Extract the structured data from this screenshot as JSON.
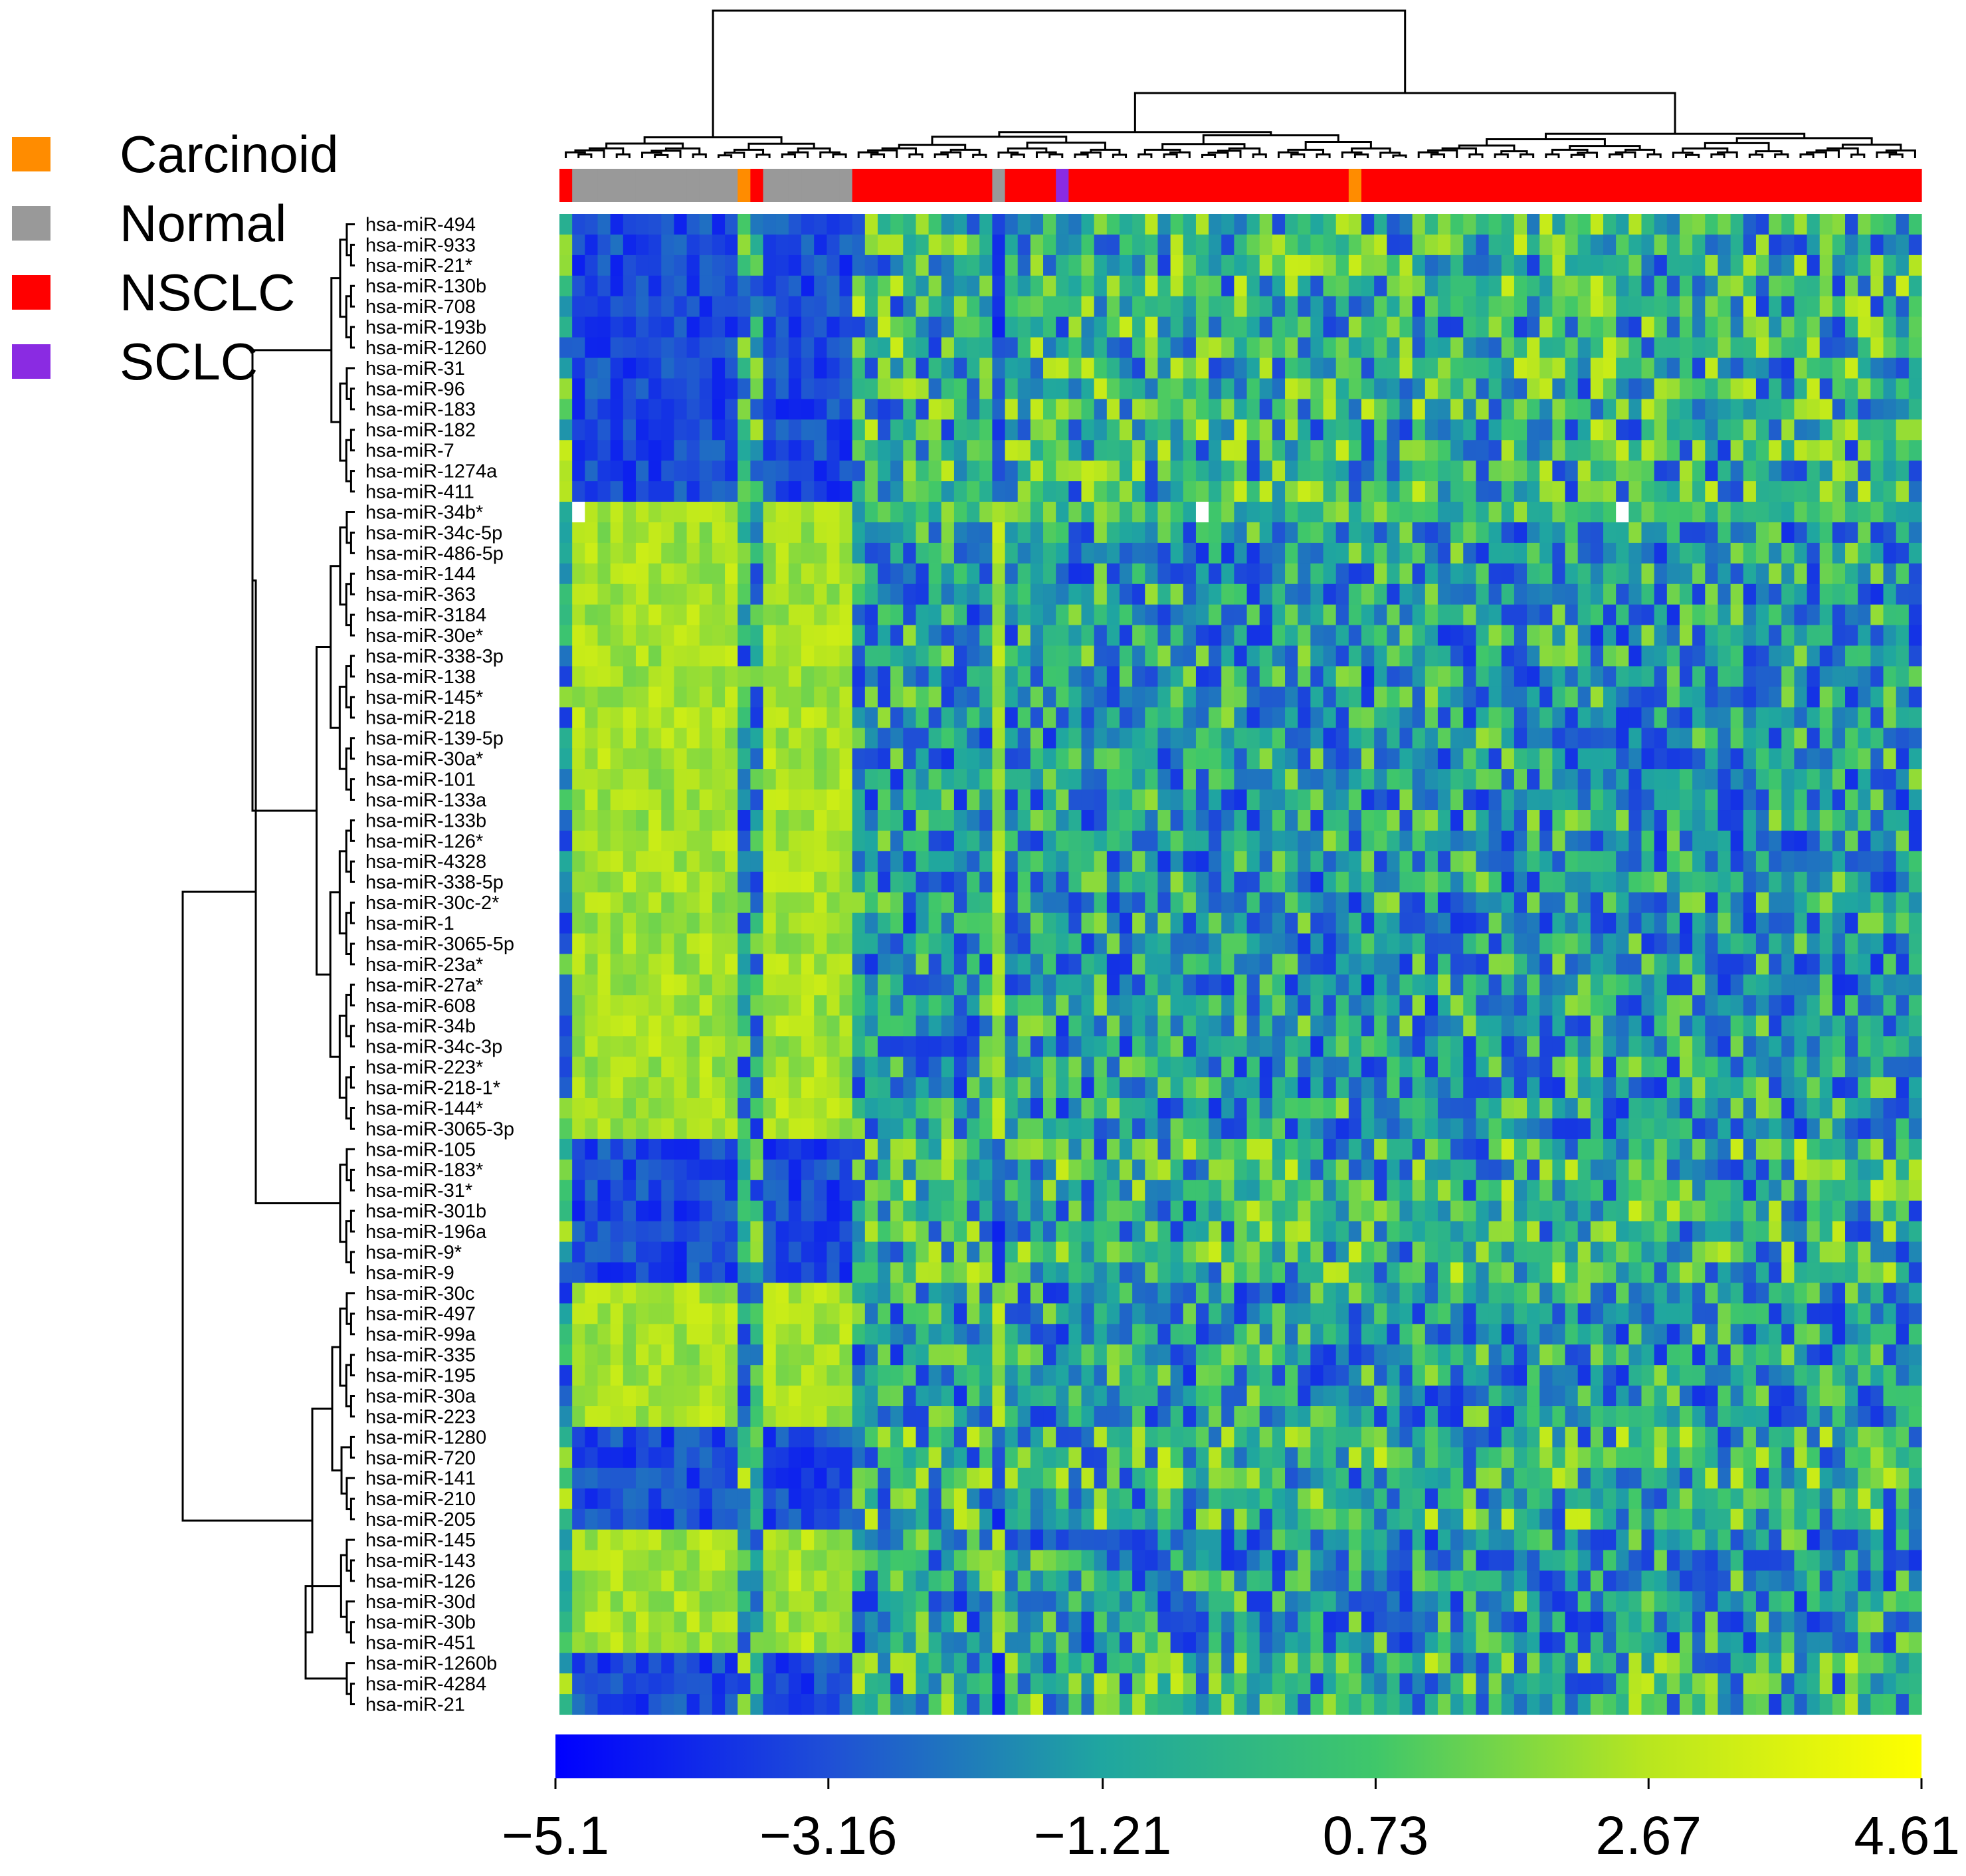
{
  "chart_data": {
    "type": "heatmap",
    "title": "",
    "legend": {
      "placement": "top-left",
      "items": [
        {
          "label": "Carcinoid",
          "color": "#ff8c00"
        },
        {
          "label": "Normal",
          "color": "#999999"
        },
        {
          "label": "NSCLC",
          "color": "#ff0000"
        },
        {
          "label": "SCLC",
          "color": "#8a2be2"
        }
      ]
    },
    "rows": [
      "hsa-miR-494",
      "hsa-miR-933",
      "hsa-miR-21*",
      "hsa-miR-130b",
      "hsa-miR-708",
      "hsa-miR-193b",
      "hsa-miR-1260",
      "hsa-miR-31",
      "hsa-miR-96",
      "hsa-miR-183",
      "hsa-miR-182",
      "hsa-miR-7",
      "hsa-miR-1274a",
      "hsa-miR-411",
      "hsa-miR-34b*",
      "hsa-miR-34c-5p",
      "hsa-miR-486-5p",
      "hsa-miR-144",
      "hsa-miR-363",
      "hsa-miR-3184",
      "hsa-miR-30e*",
      "hsa-miR-338-3p",
      "hsa-miR-138",
      "hsa-miR-145*",
      "hsa-miR-218",
      "hsa-miR-139-5p",
      "hsa-miR-30a*",
      "hsa-miR-101",
      "hsa-miR-133a",
      "hsa-miR-133b",
      "hsa-miR-126*",
      "hsa-miR-4328",
      "hsa-miR-338-5p",
      "hsa-miR-30c-2*",
      "hsa-miR-1",
      "hsa-miR-3065-5p",
      "hsa-miR-23a*",
      "hsa-miR-27a*",
      "hsa-miR-608",
      "hsa-miR-34b",
      "hsa-miR-34c-3p",
      "hsa-miR-223*",
      "hsa-miR-218-1*",
      "hsa-miR-144*",
      "hsa-miR-3065-3p",
      "hsa-miR-105",
      "hsa-miR-183*",
      "hsa-miR-31*",
      "hsa-miR-301b",
      "hsa-miR-196a",
      "hsa-miR-9*",
      "hsa-miR-9",
      "hsa-miR-30c",
      "hsa-miR-497",
      "hsa-miR-99a",
      "hsa-miR-335",
      "hsa-miR-195",
      "hsa-miR-30a",
      "hsa-miR-223",
      "hsa-miR-1280",
      "hsa-miR-720",
      "hsa-miR-141",
      "hsa-miR-210",
      "hsa-miR-205",
      "hsa-miR-145",
      "hsa-miR-143",
      "hsa-miR-126",
      "hsa-miR-30d",
      "hsa-miR-30b",
      "hsa-miR-451",
      "hsa-miR-1260b",
      "hsa-miR-4284",
      "hsa-miR-21"
    ],
    "row_block_pattern": [
      "b",
      "b",
      "b",
      "b",
      "b",
      "b",
      "b",
      "b",
      "b",
      "b",
      "b",
      "b",
      "b",
      "b",
      "w",
      "y",
      "y",
      "y",
      "y",
      "y",
      "y",
      "y",
      "y",
      "y",
      "y",
      "y",
      "y",
      "y",
      "y",
      "y",
      "y",
      "y",
      "y",
      "y",
      "y",
      "y",
      "y",
      "y",
      "y",
      "y",
      "y",
      "y",
      "y",
      "y",
      "y",
      "b",
      "b",
      "b",
      "b",
      "b",
      "b",
      "b",
      "y",
      "y",
      "y",
      "y",
      "y",
      "y",
      "y",
      "b",
      "b",
      "b",
      "b",
      "b",
      "y",
      "y",
      "y",
      "y",
      "y",
      "y",
      "b",
      "b",
      "b"
    ],
    "column_groups": [
      {
        "label": "NSCLC",
        "count": 1
      },
      {
        "label": "Normal",
        "count": 13
      },
      {
        "label": "Carcinoid",
        "count": 1
      },
      {
        "label": "NSCLC",
        "count": 1
      },
      {
        "label": "Normal",
        "count": 7
      },
      {
        "label": "NSCLC",
        "count": 11
      },
      {
        "label": "Normal",
        "count": 1
      },
      {
        "label": "NSCLC",
        "count": 4
      },
      {
        "label": "SCLC",
        "count": 1
      },
      {
        "label": "NSCLC",
        "count": 22
      },
      {
        "label": "Carcinoid",
        "count": 1
      },
      {
        "label": "NSCLC",
        "count": 44
      }
    ],
    "colorbar": {
      "min": -5.1,
      "max": 4.61,
      "ticks": [
        -5.1,
        -3.16,
        -1.21,
        0.73,
        2.67,
        4.61
      ],
      "tick_labels": [
        "−5.1",
        "−3.16",
        "−1.21",
        "0.73",
        "2.67",
        "4.61"
      ],
      "colors": [
        "#0000ff",
        "#1f4fd6",
        "#1fa6a0",
        "#3fc76a",
        "#b8e61f",
        "#ffff00"
      ]
    },
    "dendrograms": {
      "rows": "left",
      "columns": "top"
    }
  }
}
